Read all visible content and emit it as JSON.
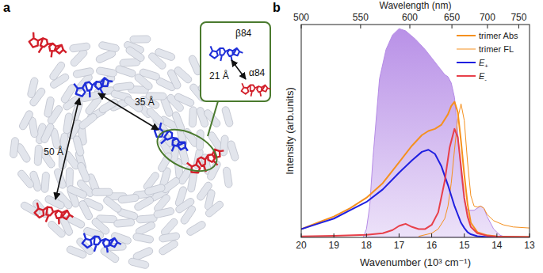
{
  "panel_a": {
    "label": "a",
    "distances": [
      "50 Å",
      "35 Å"
    ],
    "inset": {
      "distance": "21 Å",
      "beta": "β84",
      "alpha": "α84"
    }
  },
  "panel_b": {
    "label": "b"
  },
  "chart_data": {
    "type": "line",
    "xlabel": "Wavenumber (10³ cm⁻¹)",
    "x2label": "Wavelength (nm)",
    "ylabel": "Intensity (arb.units)",
    "xlim": [
      20,
      13
    ],
    "xticks": [
      20,
      19,
      18,
      17,
      16,
      15,
      14,
      13
    ],
    "x2ticks": [
      {
        "value": 20,
        "label": "500"
      },
      {
        "value": 18.18,
        "label": "550"
      },
      {
        "value": 16.67,
        "label": "600"
      },
      {
        "value": 15.38,
        "label": "650"
      },
      {
        "value": 14.29,
        "label": "700"
      },
      {
        "value": 13.33,
        "label": "750"
      }
    ],
    "ylim": [
      0,
      1.02
    ],
    "tick_labels": "x",
    "legend": "upper right",
    "series": [
      {
        "type": "area",
        "color": "#b58be6",
        "x": [
          18.1,
          18.0,
          17.9,
          17.8,
          17.6,
          17.4,
          17.2,
          17.0,
          16.8,
          16.5,
          16.2,
          16.0,
          15.8,
          15.6,
          15.5,
          15.4,
          15.3,
          15.2,
          15.1,
          15.0,
          14.9,
          14.7,
          14.5,
          14.4,
          14.3,
          14.1,
          13.9,
          13.7
        ],
        "values": [
          0,
          0.04,
          0.15,
          0.38,
          0.76,
          0.9,
          0.97,
          1.0,
          0.99,
          0.95,
          0.9,
          0.86,
          0.82,
          0.78,
          0.77,
          0.74,
          0.67,
          0.5,
          0.3,
          0.17,
          0.13,
          0.13,
          0.15,
          0.14,
          0.1,
          0.04,
          0.01,
          0
        ]
      },
      {
        "name": "trimer Abs",
        "color": "#f5901e",
        "line_style": "solid",
        "x": [
          20,
          19.5,
          19,
          18.5,
          18,
          17.5,
          17,
          16.6,
          16.3,
          16.1,
          15.9,
          15.7,
          15.5,
          15.4,
          15.3,
          15.2,
          15.1,
          15.0,
          14.9,
          14.8,
          14.6,
          14.3,
          14,
          13.5,
          13
        ],
        "values": [
          0.04,
          0.07,
          0.1,
          0.14,
          0.19,
          0.26,
          0.36,
          0.44,
          0.49,
          0.51,
          0.52,
          0.54,
          0.59,
          0.63,
          0.65,
          0.6,
          0.46,
          0.3,
          0.16,
          0.07,
          0.025,
          0.01,
          0.005,
          0.003,
          0.002
        ]
      },
      {
        "name": "trimer FL",
        "color": "#f5901e",
        "line_style": "thin",
        "x": [
          16.4,
          16.0,
          15.8,
          15.6,
          15.5,
          15.4,
          15.3,
          15.2,
          15.1,
          15.0,
          14.9,
          14.8,
          14.7,
          14.6,
          14.5,
          14.4,
          14.3,
          14.1,
          13.8,
          13.5,
          13
        ],
        "values": [
          0.005,
          0.02,
          0.04,
          0.09,
          0.15,
          0.26,
          0.42,
          0.57,
          0.64,
          0.56,
          0.36,
          0.2,
          0.15,
          0.145,
          0.15,
          0.14,
          0.11,
          0.08,
          0.06,
          0.05,
          0.045
        ]
      },
      {
        "name": "E+",
        "color": "#1f1fe0",
        "line_style": "solid",
        "x": [
          20,
          19.5,
          19,
          18.5,
          18,
          17.5,
          17,
          16.6,
          16.3,
          16.1,
          15.9,
          15.7,
          15.5,
          15.4,
          15.3,
          15.2,
          15.1,
          15.0,
          14.9,
          14.8,
          14.6,
          14.3,
          14,
          13.5,
          13
        ],
        "values": [
          0.04,
          0.065,
          0.09,
          0.13,
          0.17,
          0.23,
          0.31,
          0.37,
          0.41,
          0.42,
          0.4,
          0.34,
          0.25,
          0.2,
          0.15,
          0.11,
          0.07,
          0.045,
          0.025,
          0.015,
          0.006,
          0.002,
          0.001,
          0,
          0
        ]
      },
      {
        "name": "E-",
        "color": "#e8404a",
        "line_style": "solid",
        "x": [
          20,
          19,
          18,
          17.5,
          17.2,
          17.0,
          16.8,
          16.6,
          16.4,
          16.2,
          16.0,
          15.8,
          15.6,
          15.45,
          15.3,
          15.2,
          15.1,
          15.0,
          14.9,
          14.8,
          14.6,
          14.3,
          14,
          13
        ],
        "values": [
          0.005,
          0.008,
          0.012,
          0.02,
          0.035,
          0.055,
          0.065,
          0.05,
          0.04,
          0.04,
          0.06,
          0.12,
          0.27,
          0.43,
          0.52,
          0.48,
          0.34,
          0.19,
          0.1,
          0.05,
          0.02,
          0.008,
          0.004,
          0.002
        ]
      }
    ]
  }
}
